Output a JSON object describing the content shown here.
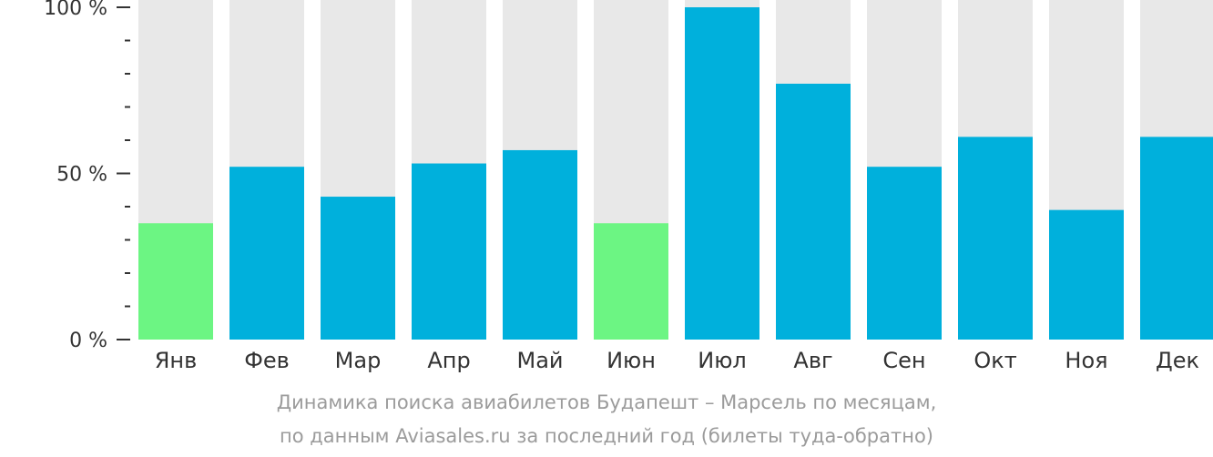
{
  "chart_data": {
    "type": "bar",
    "categories": [
      "Янв",
      "Фев",
      "Мар",
      "Апр",
      "Май",
      "Июн",
      "Июл",
      "Авг",
      "Сен",
      "Окт",
      "Ноя",
      "Дек"
    ],
    "values": [
      35,
      52,
      43,
      53,
      57,
      35,
      100,
      77,
      52,
      61,
      39,
      61
    ],
    "highlight": [
      true,
      false,
      false,
      false,
      false,
      true,
      false,
      false,
      false,
      false,
      false,
      false
    ],
    "ylim": [
      0,
      100
    ],
    "yticks": [
      {
        "value": 0,
        "label": "0 %"
      },
      {
        "value": 50,
        "label": "50 %"
      },
      {
        "value": 100,
        "label": "100 %"
      }
    ],
    "minor_tick_step": 10,
    "title": "Динамика поиска авиабилетов Будапешт – Марсель по месяцам,",
    "subtitle": "по данным Aviasales.ru за последний год (билеты туда-обратно)",
    "grid": false,
    "colors": {
      "bar": "#00b0dc",
      "highlight": "#6cf583",
      "background_bar": "#e8e8e8",
      "axis": "#333333",
      "caption": "#9b9b9b"
    }
  }
}
